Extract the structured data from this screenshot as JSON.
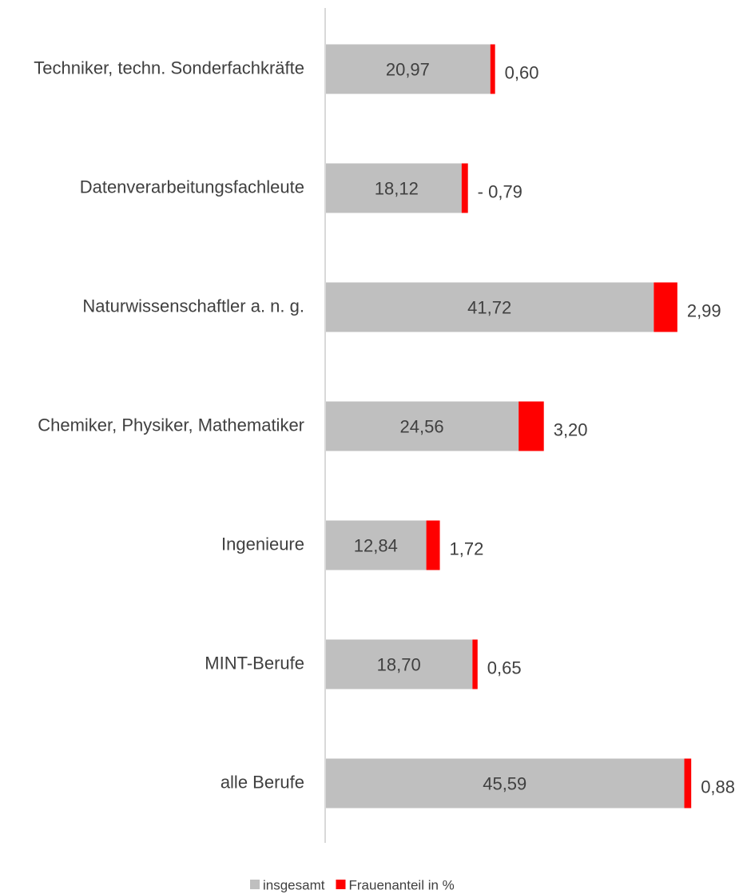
{
  "chart_data": {
    "type": "stacked-bar-horizontal",
    "categories": [
      "Techniker, techn. Sonderfachkräfte",
      "Datenverarbeitungsfachleute",
      "Naturwissenschaftler a. n. g.",
      "Chemiker, Physiker, Mathematiker",
      "Ingenieure",
      "MINT-Berufe",
      "alle Berufe"
    ],
    "series": [
      {
        "name": "insgesamt",
        "color": "#bfbfbf",
        "values": [
          20.97,
          18.12,
          41.72,
          24.56,
          12.84,
          18.7,
          45.59
        ],
        "value_labels": [
          "20,97",
          "18,12",
          "41,72",
          "24,56",
          "12,84",
          "18,70",
          "45,59"
        ]
      },
      {
        "name": "Frauenanteil in %",
        "color": "#ff0000",
        "values": [
          0.6,
          -0.79,
          2.99,
          3.2,
          1.72,
          0.65,
          0.88
        ],
        "value_labels": [
          "0,60",
          "- 0,79",
          "2,99",
          "3,20",
          "1,72",
          "0,65",
          "0,88"
        ]
      }
    ],
    "xlim": [
      0,
      50
    ]
  }
}
